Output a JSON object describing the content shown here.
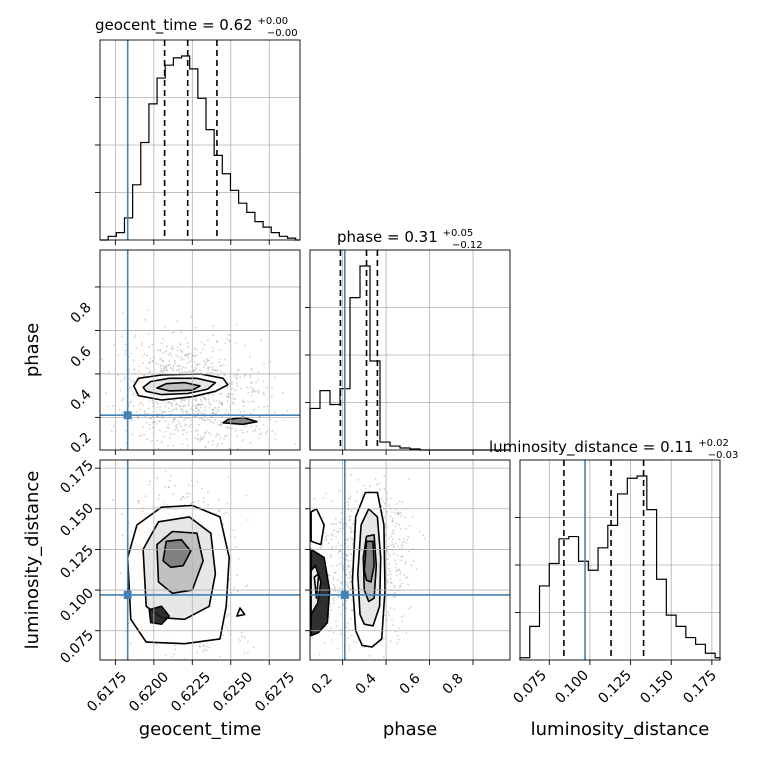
{
  "chart_data": {
    "type": "corner",
    "grid": true,
    "truth_color": "#4682b4",
    "titles": {
      "geocent_time": {
        "param": "geocent_time",
        "value": "0.62",
        "plus": "+0.00",
        "minus": "−0.00"
      },
      "phase": {
        "param": "phase",
        "value": "0.31",
        "plus": "+0.05",
        "minus": "−0.12"
      },
      "luminosity_distance": {
        "param": "luminosity_distance",
        "value": "0.11",
        "plus": "+0.02",
        "minus": "−0.03"
      }
    },
    "labels": {
      "geocent_time": "geocent_time",
      "phase": "phase",
      "luminosity_distance": "luminosity_distance"
    },
    "parameters": [
      {
        "name": "geocent_time",
        "range": [
          0.6165,
          0.6295
        ],
        "truth": 0.6183,
        "quantiles": [
          0.6207,
          0.6222,
          0.6241
        ],
        "ticks": [
          "0.6175",
          "0.6200",
          "0.6225",
          "0.6250",
          "0.6275"
        ],
        "tick_values": [
          0.6175,
          0.62,
          0.6225,
          0.625,
          0.6275
        ],
        "hist_edges": [
          0.6165,
          0.61703,
          0.61756,
          0.61809,
          0.61862,
          0.61915,
          0.61968,
          0.62021,
          0.62074,
          0.62127,
          0.6218,
          0.62233,
          0.62286,
          0.62339,
          0.62392,
          0.62445,
          0.62498,
          0.62551,
          0.62604,
          0.62657,
          0.6271,
          0.62763,
          0.62816,
          0.62869,
          0.62922,
          0.6295
        ],
        "hist_values": [
          0,
          0.02,
          0.04,
          0.12,
          0.3,
          0.53,
          0.74,
          0.88,
          0.95,
          0.99,
          1.0,
          0.93,
          0.77,
          0.6,
          0.46,
          0.36,
          0.27,
          0.2,
          0.15,
          0.1,
          0.07,
          0.04,
          0.02,
          0.01,
          0
        ]
      },
      {
        "name": "phase",
        "range": [
          0.05,
          0.97
        ],
        "truth": 0.21,
        "quantiles": [
          0.19,
          0.31,
          0.36
        ],
        "ticks": [
          "0.2",
          "0.4",
          "0.6",
          "0.8"
        ],
        "tick_values": [
          0.2,
          0.4,
          0.6,
          0.8
        ],
        "hist_edges": [
          0.05,
          0.096,
          0.142,
          0.188,
          0.234,
          0.28,
          0.326,
          0.372,
          0.418,
          0.464,
          0.51,
          0.556,
          0.602,
          0.648,
          0.694,
          0.74,
          0.786,
          0.832,
          0.878,
          0.924,
          0.97
        ],
        "hist_values": [
          0.21,
          0.3,
          0.23,
          0.31,
          0.77,
          0.93,
          0.45,
          0.04,
          0.02,
          0.01,
          0.005,
          0,
          0,
          0,
          0,
          0,
          0,
          0,
          0,
          0
        ]
      },
      {
        "name": "luminosity_distance",
        "range": [
          0.057,
          0.18
        ],
        "truth": 0.097,
        "quantiles": [
          0.084,
          0.113,
          0.133
        ],
        "ticks": [
          "0.075",
          "0.100",
          "0.125",
          "0.150",
          "0.175"
        ],
        "tick_values": [
          0.075,
          0.1,
          0.125,
          0.15,
          0.175
        ],
        "hist_edges": [
          0.057,
          0.063,
          0.069,
          0.075,
          0.081,
          0.087,
          0.093,
          0.099,
          0.105,
          0.111,
          0.117,
          0.123,
          0.129,
          0.135,
          0.141,
          0.147,
          0.153,
          0.159,
          0.165,
          0.171,
          0.177,
          0.18
        ],
        "hist_values": [
          0.01,
          0.15,
          0.33,
          0.43,
          0.54,
          0.55,
          0.44,
          0.4,
          0.5,
          0.6,
          0.74,
          0.81,
          0.82,
          0.67,
          0.36,
          0.2,
          0.15,
          0.1,
          0.07,
          0.03,
          0.01
        ]
      }
    ],
    "axis_ticks": {
      "phase_y": [
        "0.2",
        "0.4",
        "0.6",
        "0.8"
      ],
      "luminosity_distance_y": [
        "0.075",
        "0.100",
        "0.125",
        "0.150",
        "0.175"
      ]
    },
    "contours_2d": [
      {
        "x": "geocent_time",
        "y": "phase",
        "levels": [
          [
            [
              0.6187,
              0.345
            ],
            [
              0.619,
              0.38
            ],
            [
              0.6205,
              0.395
            ],
            [
              0.623,
              0.4
            ],
            [
              0.6245,
              0.38
            ],
            [
              0.6248,
              0.35
            ],
            [
              0.624,
              0.32
            ],
            [
              0.6225,
              0.295
            ],
            [
              0.6205,
              0.28
            ],
            [
              0.619,
              0.3
            ]
          ],
          [
            [
              0.6193,
              0.338
            ],
            [
              0.6198,
              0.365
            ],
            [
              0.621,
              0.38
            ],
            [
              0.6228,
              0.38
            ],
            [
              0.624,
              0.36
            ],
            [
              0.6235,
              0.33
            ],
            [
              0.6222,
              0.31
            ],
            [
              0.6205,
              0.305
            ],
            [
              0.6195,
              0.32
            ]
          ],
          [
            [
              0.6202,
              0.335
            ],
            [
              0.6208,
              0.355
            ],
            [
              0.622,
              0.36
            ],
            [
              0.623,
              0.345
            ],
            [
              0.6225,
              0.325
            ],
            [
              0.621,
              0.322
            ]
          ],
          [
            [
              0.6248,
              0.19
            ],
            [
              0.6258,
              0.2
            ],
            [
              0.6267,
              0.18
            ],
            [
              0.6258,
              0.168
            ],
            [
              0.6245,
              0.175
            ]
          ]
        ],
        "points": [
          [
            0.6212,
            0.33
          ],
          [
            0.622,
            0.34
          ],
          [
            0.6205,
            0.325
          ],
          [
            0.623,
            0.32
          ],
          [
            0.621,
            0.35
          ],
          [
            0.6235,
            0.3
          ],
          [
            0.6195,
            0.31
          ],
          [
            0.624,
            0.29
          ],
          [
            0.6225,
            0.36
          ],
          [
            0.6245,
            0.27
          ],
          [
            0.6255,
            0.23
          ],
          [
            0.6262,
            0.2
          ],
          [
            0.6198,
            0.36
          ],
          [
            0.6218,
            0.31
          ],
          [
            0.6228,
            0.35
          ]
        ]
      },
      {
        "x": "geocent_time",
        "y": "luminosity_distance",
        "levels": [
          [
            [
              0.6185,
              0.082
            ],
            [
              0.6183,
              0.12
            ],
            [
              0.6189,
              0.14
            ],
            [
              0.6205,
              0.151
            ],
            [
              0.6225,
              0.152
            ],
            [
              0.6243,
              0.145
            ],
            [
              0.6249,
              0.12
            ],
            [
              0.6247,
              0.09
            ],
            [
              0.6243,
              0.07
            ],
            [
              0.622,
              0.067
            ],
            [
              0.6195,
              0.068
            ]
          ],
          [
            [
              0.6195,
              0.09
            ],
            [
              0.6193,
              0.125
            ],
            [
              0.6203,
              0.142
            ],
            [
              0.6223,
              0.145
            ],
            [
              0.6237,
              0.135
            ],
            [
              0.624,
              0.11
            ],
            [
              0.6236,
              0.09
            ],
            [
              0.622,
              0.082
            ],
            [
              0.6205,
              0.083
            ]
          ],
          [
            [
              0.6203,
              0.105
            ],
            [
              0.6202,
              0.128
            ],
            [
              0.6212,
              0.136
            ],
            [
              0.6228,
              0.135
            ],
            [
              0.6232,
              0.118
            ],
            [
              0.6225,
              0.1
            ],
            [
              0.6212,
              0.098
            ]
          ],
          [
            [
              0.6206,
              0.118
            ],
            [
              0.6208,
              0.13
            ],
            [
              0.6218,
              0.131
            ],
            [
              0.6224,
              0.124
            ],
            [
              0.6219,
              0.115
            ],
            [
              0.6211,
              0.114
            ]
          ],
          [
            [
              0.6198,
              0.08
            ],
            [
              0.6197,
              0.088
            ],
            [
              0.6205,
              0.09
            ],
            [
              0.621,
              0.084
            ],
            [
              0.6205,
              0.079
            ]
          ],
          [
            [
              0.6254,
              0.084
            ],
            [
              0.6256,
              0.089
            ],
            [
              0.6259,
              0.085
            ]
          ]
        ],
        "points": [
          [
            0.6215,
            0.125
          ],
          [
            0.6212,
            0.13
          ],
          [
            0.6222,
            0.122
          ],
          [
            0.6218,
            0.115
          ],
          [
            0.621,
            0.11
          ],
          [
            0.6225,
            0.11
          ],
          [
            0.6205,
            0.1
          ],
          [
            0.623,
            0.095
          ],
          [
            0.62,
            0.118
          ],
          [
            0.6235,
            0.125
          ],
          [
            0.6215,
            0.09
          ],
          [
            0.6228,
            0.14
          ],
          [
            0.6202,
            0.14
          ],
          [
            0.6238,
            0.08
          ],
          [
            0.6208,
            0.085
          ]
        ]
      },
      {
        "x": "phase",
        "y": "luminosity_distance",
        "levels": [
          [
            [
              0.26,
              0.075
            ],
            [
              0.245,
              0.105
            ],
            [
              0.26,
              0.145
            ],
            [
              0.305,
              0.16
            ],
            [
              0.36,
              0.16
            ],
            [
              0.39,
              0.14
            ],
            [
              0.395,
              0.1
            ],
            [
              0.38,
              0.07
            ],
            [
              0.335,
              0.065
            ],
            [
              0.29,
              0.066
            ]
          ],
          [
            [
              0.28,
              0.085
            ],
            [
              0.27,
              0.11
            ],
            [
              0.285,
              0.14
            ],
            [
              0.32,
              0.15
            ],
            [
              0.36,
              0.145
            ],
            [
              0.375,
              0.12
            ],
            [
              0.37,
              0.09
            ],
            [
              0.34,
              0.078
            ],
            [
              0.3,
              0.079
            ]
          ],
          [
            [
              0.3,
              0.1
            ],
            [
              0.295,
              0.12
            ],
            [
              0.31,
              0.133
            ],
            [
              0.345,
              0.134
            ],
            [
              0.355,
              0.115
            ],
            [
              0.345,
              0.095
            ],
            [
              0.32,
              0.093
            ]
          ],
          [
            [
              0.3,
              0.112
            ],
            [
              0.31,
              0.13
            ],
            [
              0.34,
              0.13
            ],
            [
              0.345,
              0.115
            ],
            [
              0.33,
              0.105
            ],
            [
              0.31,
              0.106
            ]
          ],
          [
            [
              0.055,
              0.072
            ],
            [
              0.09,
              0.074
            ],
            [
              0.13,
              0.08
            ],
            [
              0.14,
              0.1
            ],
            [
              0.115,
              0.12
            ],
            [
              0.055,
              0.125
            ]
          ],
          [
            [
              0.055,
              0.085
            ],
            [
              0.085,
              0.092
            ],
            [
              0.1,
              0.105
            ],
            [
              0.075,
              0.115
            ],
            [
              0.055,
              0.112
            ]
          ],
          [
            [
              0.055,
              0.13
            ],
            [
              0.1,
              0.128
            ],
            [
              0.115,
              0.14
            ],
            [
              0.08,
              0.15
            ],
            [
              0.055,
              0.148
            ]
          ],
          [
            [
              0.08,
              0.095
            ],
            [
              0.09,
              0.11
            ],
            [
              0.07,
              0.108
            ]
          ]
        ],
        "points": [
          [
            0.33,
            0.125
          ],
          [
            0.32,
            0.12
          ],
          [
            0.34,
            0.13
          ],
          [
            0.31,
            0.11
          ],
          [
            0.35,
            0.115
          ],
          [
            0.3,
            0.1
          ],
          [
            0.33,
            0.14
          ],
          [
            0.36,
            0.105
          ],
          [
            0.32,
            0.09
          ],
          [
            0.08,
            0.1
          ],
          [
            0.09,
            0.12
          ],
          [
            0.1,
            0.09
          ],
          [
            0.07,
            0.11
          ],
          [
            0.28,
            0.13
          ],
          [
            0.37,
            0.135
          ]
        ]
      }
    ]
  }
}
